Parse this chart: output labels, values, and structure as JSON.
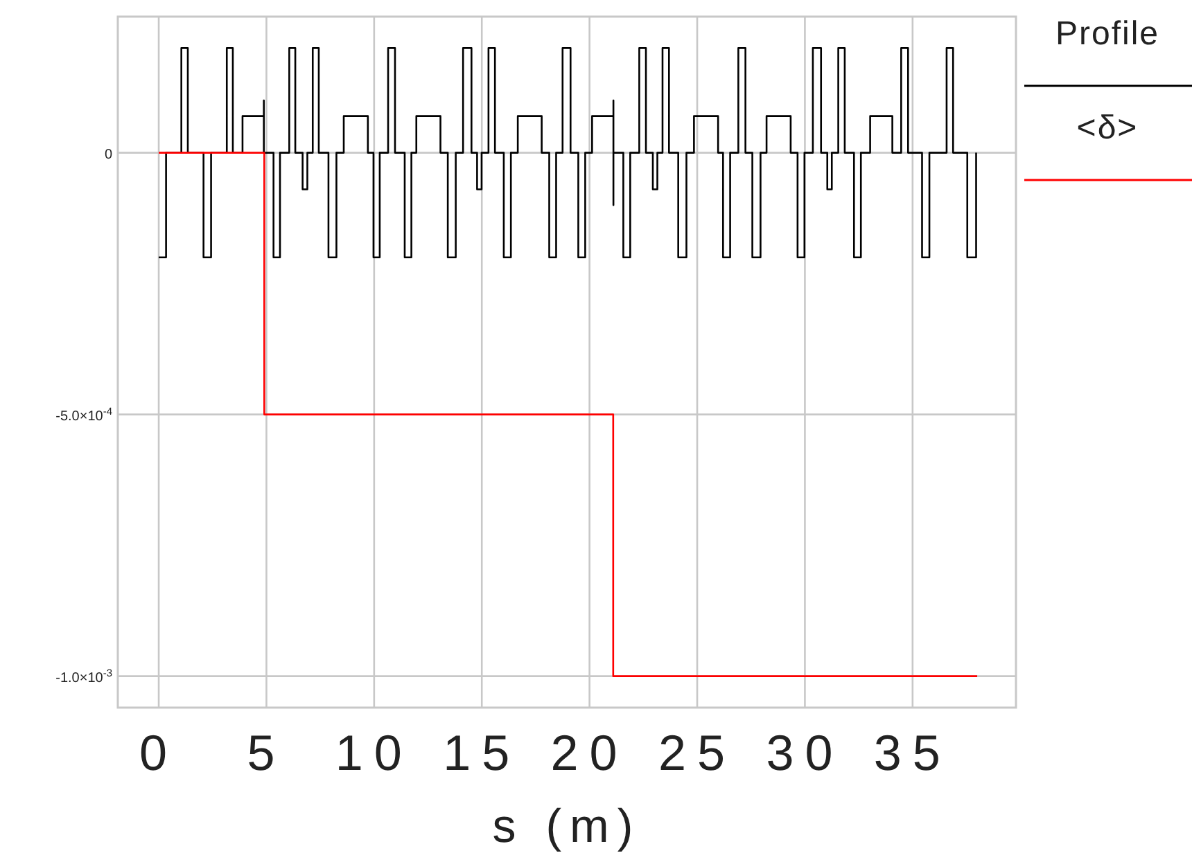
{
  "chart_data": {
    "type": "step",
    "xlabel": "s (m)",
    "xlim": [
      -1.9,
      39.8
    ],
    "xticks": [
      0,
      5,
      10,
      15,
      20,
      25,
      30,
      35
    ],
    "ylim": [
      -0.00106,
      0.00026
    ],
    "yticks": [
      {
        "value": 0,
        "label": "0"
      },
      {
        "value": -0.0005,
        "label": "-5.0×10$^{-4}$"
      },
      {
        "value": -0.001,
        "label": "-1.0×10$^{-3}$"
      }
    ],
    "grid": true,
    "legend": "top right",
    "line_style": "solid",
    "marker": "none",
    "series": [
      {
        "name": "Profile",
        "color": "#000000",
        "x": [
          0,
          0.34,
          1.05,
          1.35,
          2.08,
          2.43,
          3.16,
          3.44,
          3.89,
          4.88,
          4.88,
          5.33,
          5.63,
          6.06,
          6.34,
          6.68,
          6.9,
          7.15,
          7.43,
          7.88,
          8.25,
          8.59,
          9.71,
          9.97,
          10.26,
          10.65,
          10.97,
          11.42,
          11.73,
          11.96,
          13.08,
          13.42,
          13.79,
          14.13,
          14.52,
          14.78,
          14.99,
          15.31,
          15.61,
          16.02,
          16.35,
          16.67,
          17.78,
          18.13,
          18.45,
          18.75,
          19.12,
          19.48,
          19.8,
          20.12,
          21.11,
          21.11,
          21.11,
          21.57,
          21.89,
          22.31,
          22.62,
          22.94,
          23.15,
          23.39,
          23.69,
          24.12,
          24.5,
          24.85,
          25.97,
          26.2,
          26.53,
          26.91,
          27.24,
          27.56,
          27.94,
          28.22,
          29.34,
          29.66,
          29.98,
          30.37,
          30.75,
          31.04,
          31.25,
          31.55,
          31.85,
          32.28,
          32.6,
          33.03,
          34.06,
          34.47,
          34.79,
          35.44,
          35.78,
          36.58,
          36.88,
          37.54,
          37.95
        ],
        "values": [
          -0.0002,
          0,
          0.0002,
          0,
          -0.0002,
          0,
          0.0002,
          0,
          7e-05,
          0.0001,
          0,
          -0.0002,
          0,
          0.0002,
          0,
          -7e-05,
          0,
          0.0002,
          0,
          -0.0002,
          0,
          7e-05,
          0,
          -0.0002,
          0,
          0.0002,
          0,
          -0.0002,
          0,
          7e-05,
          0,
          -0.0002,
          0,
          0.0002,
          0,
          -7e-05,
          0,
          0.0002,
          0,
          -0.0002,
          0,
          7e-05,
          0,
          -0.0002,
          0,
          0.0002,
          0,
          -0.0002,
          0,
          7e-05,
          0.0001,
          -0.0001,
          0,
          -0.0002,
          0,
          0.0002,
          0,
          -7e-05,
          0,
          0.0002,
          0,
          -0.0002,
          0,
          7e-05,
          0,
          -0.0002,
          0,
          0.0002,
          0,
          -0.0002,
          0,
          7e-05,
          0,
          -0.0002,
          0,
          0.0002,
          0,
          -7e-05,
          0,
          0.0002,
          0,
          -0.0002,
          0,
          7e-05,
          0,
          0.0002,
          0,
          -0.0002,
          0,
          0.0002,
          0,
          -0.0002,
          0
        ]
      },
      {
        "name": "<δ>",
        "color": "#ff0000",
        "x": [
          0,
          4.9,
          21.1,
          38
        ],
        "values": [
          0,
          -0.0005,
          -0.001,
          -0.001
        ]
      }
    ]
  }
}
